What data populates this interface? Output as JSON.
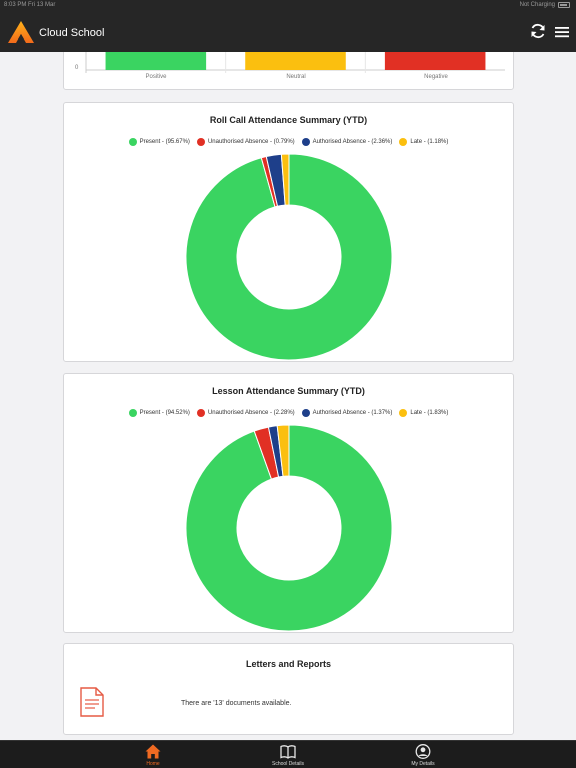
{
  "status_bar": {
    "time": "8:03 PM  Fri 13 Mar",
    "charging": "Not Charging"
  },
  "header": {
    "title": "Cloud School",
    "refresh_icon": "refresh-icon",
    "menu_icon": "hamburger-menu-icon"
  },
  "behaviour_chart": {
    "chart_data": {
      "type": "bar",
      "categories": [
        "Positive",
        "Neutral",
        "Negative"
      ],
      "colors": [
        "#3ad461",
        "#fbbf0f",
        "#e13024"
      ],
      "y_tick_visible": "0"
    }
  },
  "roll_call": {
    "title": "Roll Call Attendance Summary (YTD)",
    "chart_data": {
      "type": "pie",
      "variant": "donut",
      "series": [
        {
          "label": "Present - (95.67%)",
          "value": 95.67,
          "color": "#3ad461"
        },
        {
          "label": "Unauthorised Absence - (0.79%)",
          "value": 0.79,
          "color": "#e13024"
        },
        {
          "label": "Authorised Absence - (2.36%)",
          "value": 2.36,
          "color": "#1e3f8a"
        },
        {
          "label": "Late - (1.18%)",
          "value": 1.18,
          "color": "#fbbf0f"
        }
      ],
      "legend_position": "top"
    }
  },
  "lesson": {
    "title": "Lesson Attendance Summary (YTD)",
    "chart_data": {
      "type": "pie",
      "variant": "donut",
      "series": [
        {
          "label": "Present - (94.52%)",
          "value": 94.52,
          "color": "#3ad461"
        },
        {
          "label": "Unauthorised Absence - (2.28%)",
          "value": 2.28,
          "color": "#e13024"
        },
        {
          "label": "Authorised Absence - (1.37%)",
          "value": 1.37,
          "color": "#1e3f8a"
        },
        {
          "label": "Late - (1.83%)",
          "value": 1.83,
          "color": "#fbbf0f"
        }
      ],
      "legend_position": "top"
    }
  },
  "letters": {
    "title": "Letters and Reports",
    "icon": "document-icon",
    "text": "There are '13' documents available."
  },
  "tabbar": {
    "tabs": [
      {
        "label": "Home",
        "icon": "home-icon",
        "active": true
      },
      {
        "label": "School Details",
        "icon": "book-icon",
        "active": false
      },
      {
        "label": "My Details",
        "icon": "user-icon",
        "active": false
      }
    ]
  }
}
